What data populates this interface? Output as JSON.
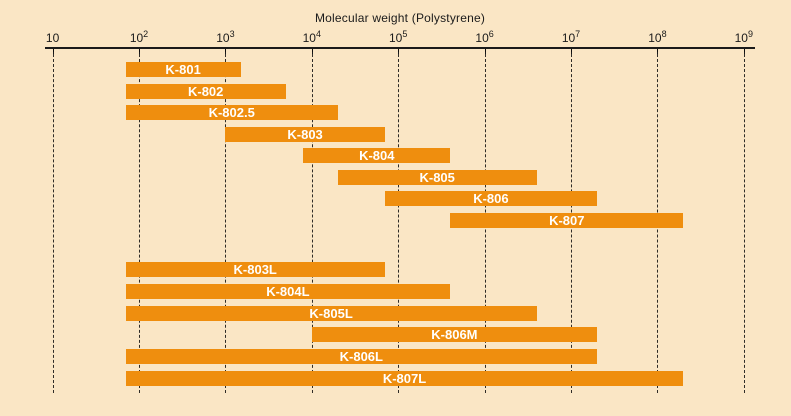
{
  "colors": {
    "background": "#FAE6C5",
    "bar": "#EF8E0E",
    "bar_label": "#FFFFFF",
    "axis": "#1A1A1A"
  },
  "chart_data": {
    "type": "bar",
    "variant": "horizontal-log-range-bars",
    "title": "Molecular weight (Polystyrene)",
    "x_axis": {
      "scale": "log10",
      "min": 10,
      "max": 1000000000,
      "tick_base": "10",
      "tick_exponents": [
        1,
        2,
        3,
        4,
        5,
        6,
        7,
        8,
        9
      ],
      "gridlines": "dashed-vertical"
    },
    "legend": "none",
    "series": [
      {
        "name": "K-801",
        "min": 70,
        "max": 1500,
        "group": 1
      },
      {
        "name": "K-802",
        "min": 70,
        "max": 5000,
        "group": 1
      },
      {
        "name": "K-802.5",
        "min": 70,
        "max": 20000,
        "group": 1
      },
      {
        "name": "K-803",
        "min": 1000,
        "max": 70000,
        "group": 1
      },
      {
        "name": "K-804",
        "min": 8000,
        "max": 400000,
        "group": 1
      },
      {
        "name": "K-805",
        "min": 20000,
        "max": 4000000,
        "group": 1
      },
      {
        "name": "K-806",
        "min": 70000,
        "max": 20000000,
        "group": 1
      },
      {
        "name": "K-807",
        "min": 400000,
        "max": 200000000,
        "group": 1
      },
      {
        "name": "K-803L",
        "min": 70,
        "max": 70000,
        "group": 2
      },
      {
        "name": "K-804L",
        "min": 70,
        "max": 400000,
        "group": 2
      },
      {
        "name": "K-805L",
        "min": 70,
        "max": 4000000,
        "group": 2
      },
      {
        "name": "K-806M",
        "min": 10000,
        "max": 20000000,
        "group": 2
      },
      {
        "name": "K-806L",
        "min": 70,
        "max": 20000000,
        "group": 2
      },
      {
        "name": "K-807L",
        "min": 70,
        "max": 200000000,
        "group": 2
      }
    ]
  }
}
